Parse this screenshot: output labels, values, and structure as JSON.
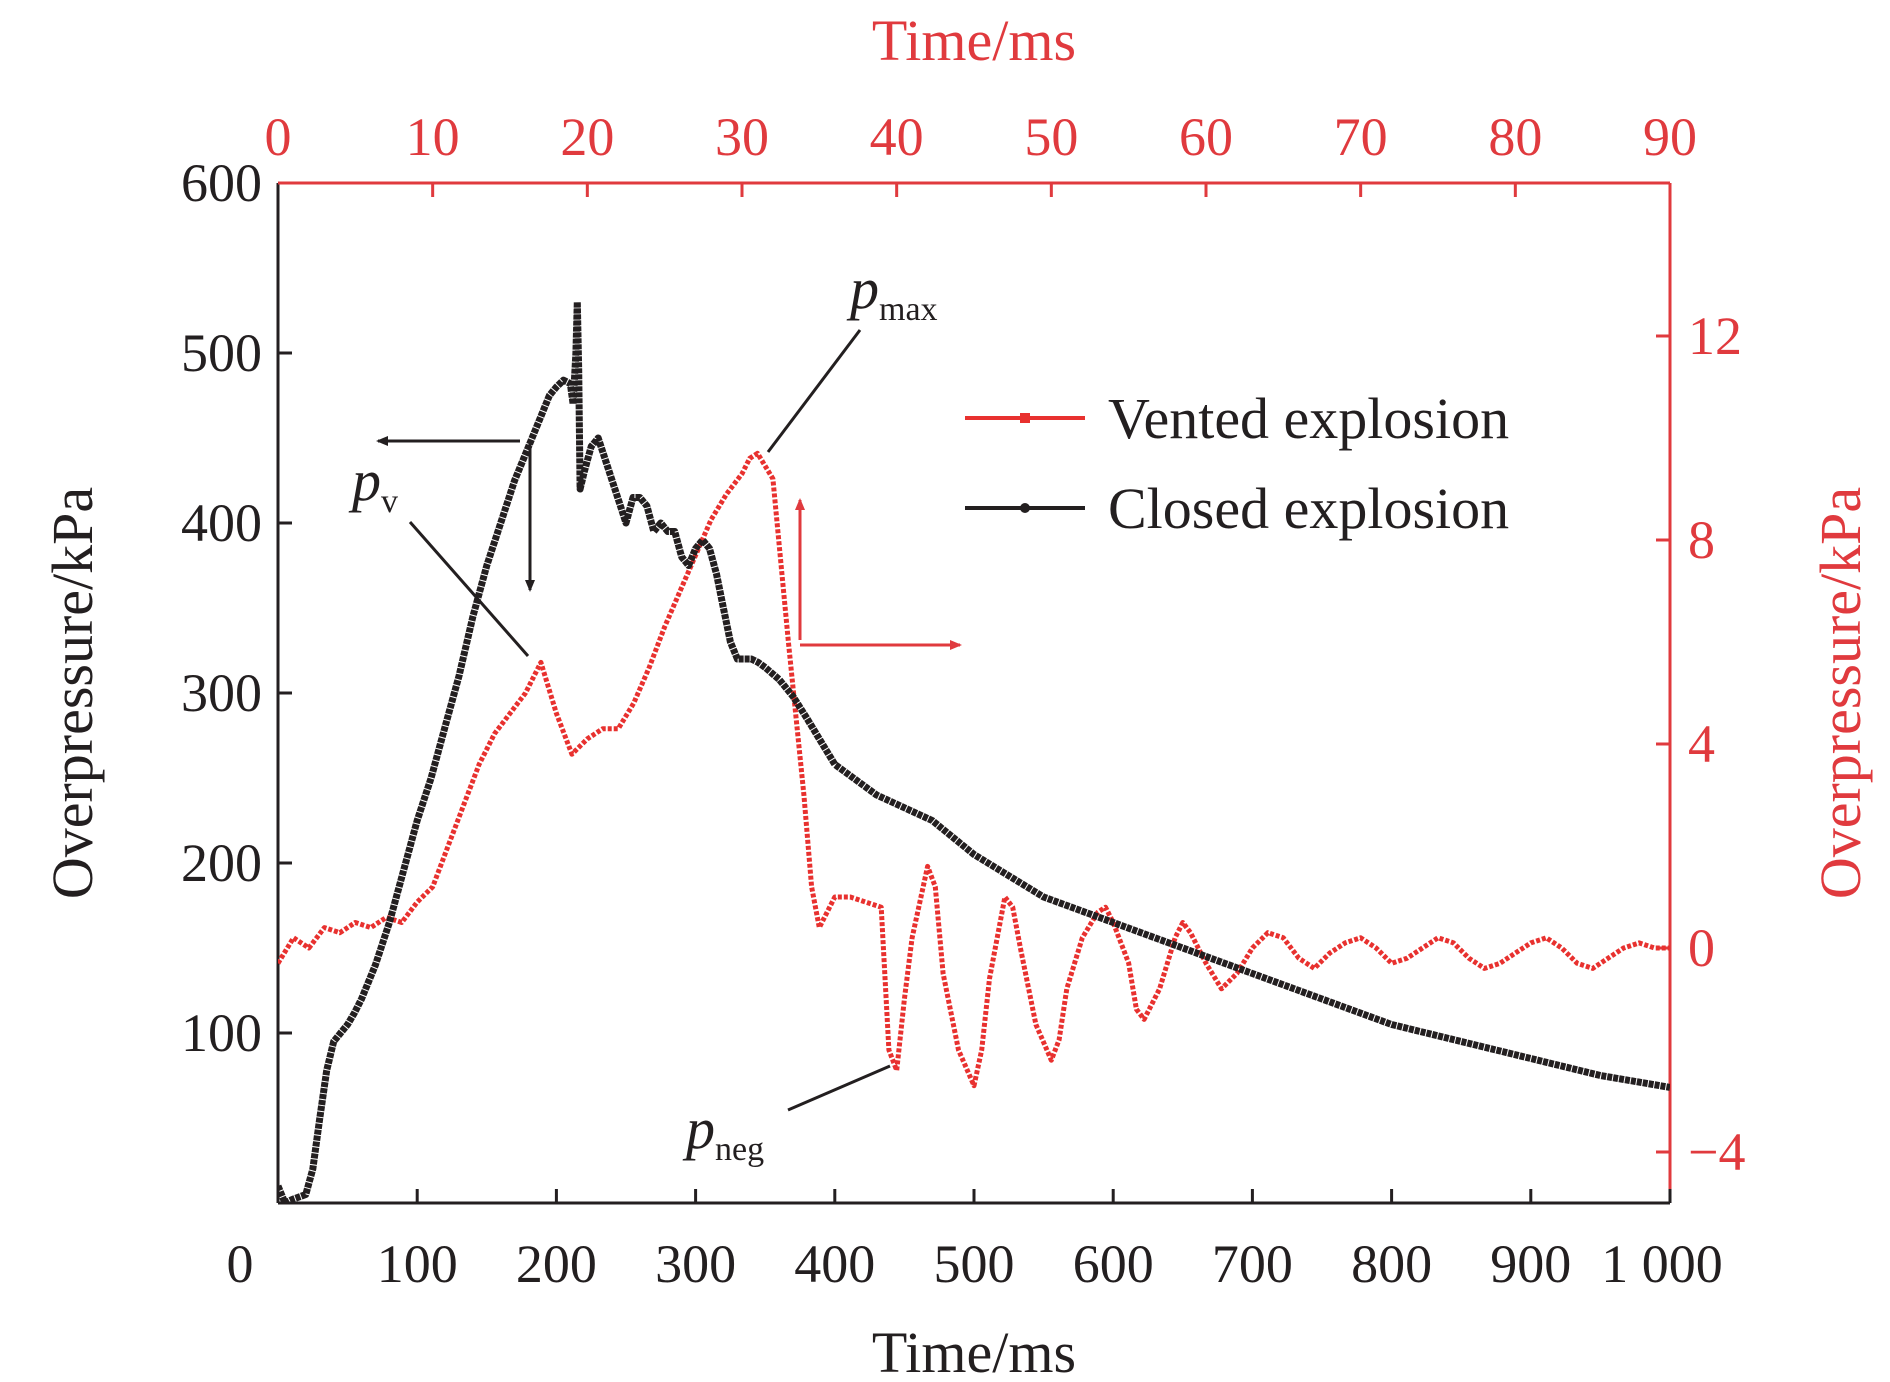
{
  "chart_data": {
    "type": "line",
    "title": "",
    "colors": {
      "axis_black": "#231f20",
      "axis_red": "#e03a3e",
      "closed": "#231f20",
      "vented": "#e8312f"
    },
    "axes": {
      "x_bottom": {
        "label": "Time/ms",
        "range": [
          0,
          1000
        ],
        "ticks": [
          0,
          100,
          200,
          300,
          400,
          500,
          600,
          700,
          800,
          900,
          1000
        ],
        "tick_labels": [
          "0",
          "100",
          "200",
          "300",
          "400",
          "500",
          "600",
          "700",
          "800",
          "900",
          "1 000"
        ]
      },
      "x_top": {
        "label": "Time/ms",
        "range": [
          0,
          90
        ],
        "ticks": [
          0,
          10,
          20,
          30,
          40,
          50,
          60,
          70,
          80,
          90
        ],
        "tick_labels": [
          "0",
          "10",
          "20",
          "30",
          "40",
          "50",
          "60",
          "70",
          "80",
          "90"
        ]
      },
      "y_left": {
        "label": "Overpressure/kPa",
        "range": [
          0,
          600
        ],
        "ticks": [
          100,
          200,
          300,
          400,
          500,
          600
        ],
        "tick_labels": [
          "100",
          "200",
          "300",
          "400",
          "500",
          "600"
        ]
      },
      "y_right": {
        "label": "Overpressure/kPa",
        "range": [
          -5,
          15
        ],
        "ticks": [
          -4,
          0,
          4,
          8,
          12
        ],
        "tick_labels": [
          "−4",
          "0",
          "4",
          "8",
          "12"
        ]
      }
    },
    "legend": {
      "position": "top-right",
      "entries": [
        "Vented explosion",
        "Closed explosion"
      ]
    },
    "annotations": {
      "p_v": {
        "main": "p",
        "sub": "v"
      },
      "p_max": {
        "main": "p",
        "sub": "max"
      },
      "p_neg": {
        "main": "p",
        "sub": "neg"
      }
    },
    "series": [
      {
        "name": "Closed explosion",
        "axis": "bottom-left",
        "x": [
          0,
          5,
          10,
          20,
          25,
          30,
          35,
          40,
          45,
          50,
          55,
          60,
          70,
          80,
          90,
          100,
          110,
          120,
          130,
          140,
          150,
          160,
          170,
          180,
          190,
          195,
          200,
          205,
          210,
          212,
          214,
          215,
          216,
          217,
          220,
          225,
          230,
          240,
          250,
          255,
          260,
          265,
          270,
          275,
          280,
          285,
          290,
          295,
          300,
          305,
          310,
          315,
          320,
          325,
          330,
          335,
          340,
          345,
          350,
          360,
          370,
          380,
          400,
          430,
          470,
          500,
          550,
          600,
          650,
          700,
          750,
          800,
          850,
          900,
          950,
          1000
        ],
        "y": [
          10,
          0,
          2,
          5,
          20,
          50,
          78,
          95,
          100,
          105,
          112,
          120,
          140,
          165,
          195,
          225,
          250,
          280,
          310,
          345,
          375,
          400,
          425,
          445,
          465,
          475,
          480,
          484,
          482,
          470,
          500,
          530,
          490,
          420,
          430,
          445,
          450,
          425,
          400,
          415,
          415,
          410,
          395,
          400,
          395,
          395,
          380,
          375,
          385,
          390,
          385,
          370,
          350,
          330,
          320,
          320,
          320,
          318,
          315,
          308,
          298,
          285,
          258,
          240,
          225,
          205,
          180,
          165,
          150,
          135,
          120,
          105,
          95,
          85,
          75,
          68
        ]
      },
      {
        "name": "Vented explosion",
        "axis": "top-right",
        "x": [
          0,
          1,
          2,
          3,
          4,
          5,
          6,
          7,
          8,
          9,
          10,
          11,
          12,
          13,
          14,
          15,
          16,
          17,
          18,
          19,
          20,
          21,
          22,
          23,
          24,
          25,
          26,
          27,
          28,
          29,
          30,
          30.5,
          31,
          32,
          33,
          34,
          34.5,
          35,
          36,
          37,
          38,
          39,
          39.5,
          40,
          40.5,
          41,
          42,
          42.5,
          43,
          44,
          45,
          45.5,
          46,
          47,
          47.5,
          48,
          49,
          50,
          50.5,
          51,
          52,
          53,
          53.5,
          54,
          55,
          55.5,
          56,
          57,
          58,
          58.5,
          59,
          60,
          61,
          62,
          63,
          64,
          65,
          66,
          67,
          68,
          69,
          70,
          71,
          72,
          73,
          74,
          75,
          76,
          77,
          78,
          79,
          80,
          81,
          82,
          83,
          84,
          85,
          86,
          87,
          88,
          89,
          90
        ],
        "y": [
          -0.3,
          0.2,
          0,
          0.4,
          0.3,
          0.5,
          0.4,
          0.6,
          0.5,
          0.9,
          1.2,
          2.0,
          2.8,
          3.6,
          4.2,
          4.6,
          5.0,
          5.6,
          4.6,
          3.8,
          4.1,
          4.3,
          4.3,
          4.8,
          5.5,
          6.3,
          7.0,
          7.7,
          8.4,
          8.9,
          9.3,
          9.6,
          9.7,
          9.2,
          6.0,
          3.0,
          1.2,
          0.4,
          1.0,
          1.0,
          0.9,
          0.8,
          -2.0,
          -2.4,
          -1.0,
          0.2,
          1.6,
          1.2,
          -0.5,
          -2.0,
          -2.7,
          -2.0,
          -0.6,
          1.0,
          0.8,
          0.0,
          -1.5,
          -2.2,
          -1.8,
          -0.8,
          0.2,
          0.7,
          0.8,
          0.5,
          -0.3,
          -1.2,
          -1.4,
          -0.8,
          0.2,
          0.5,
          0.3,
          -0.3,
          -0.8,
          -0.5,
          0.0,
          0.3,
          0.2,
          -0.2,
          -0.4,
          -0.1,
          0.1,
          0.2,
          0.0,
          -0.3,
          -0.2,
          0.0,
          0.2,
          0.1,
          -0.2,
          -0.4,
          -0.3,
          -0.1,
          0.1,
          0.2,
          0.0,
          -0.3,
          -0.4,
          -0.2,
          0.0,
          0.1,
          0.0,
          0.0
        ]
      }
    ]
  }
}
